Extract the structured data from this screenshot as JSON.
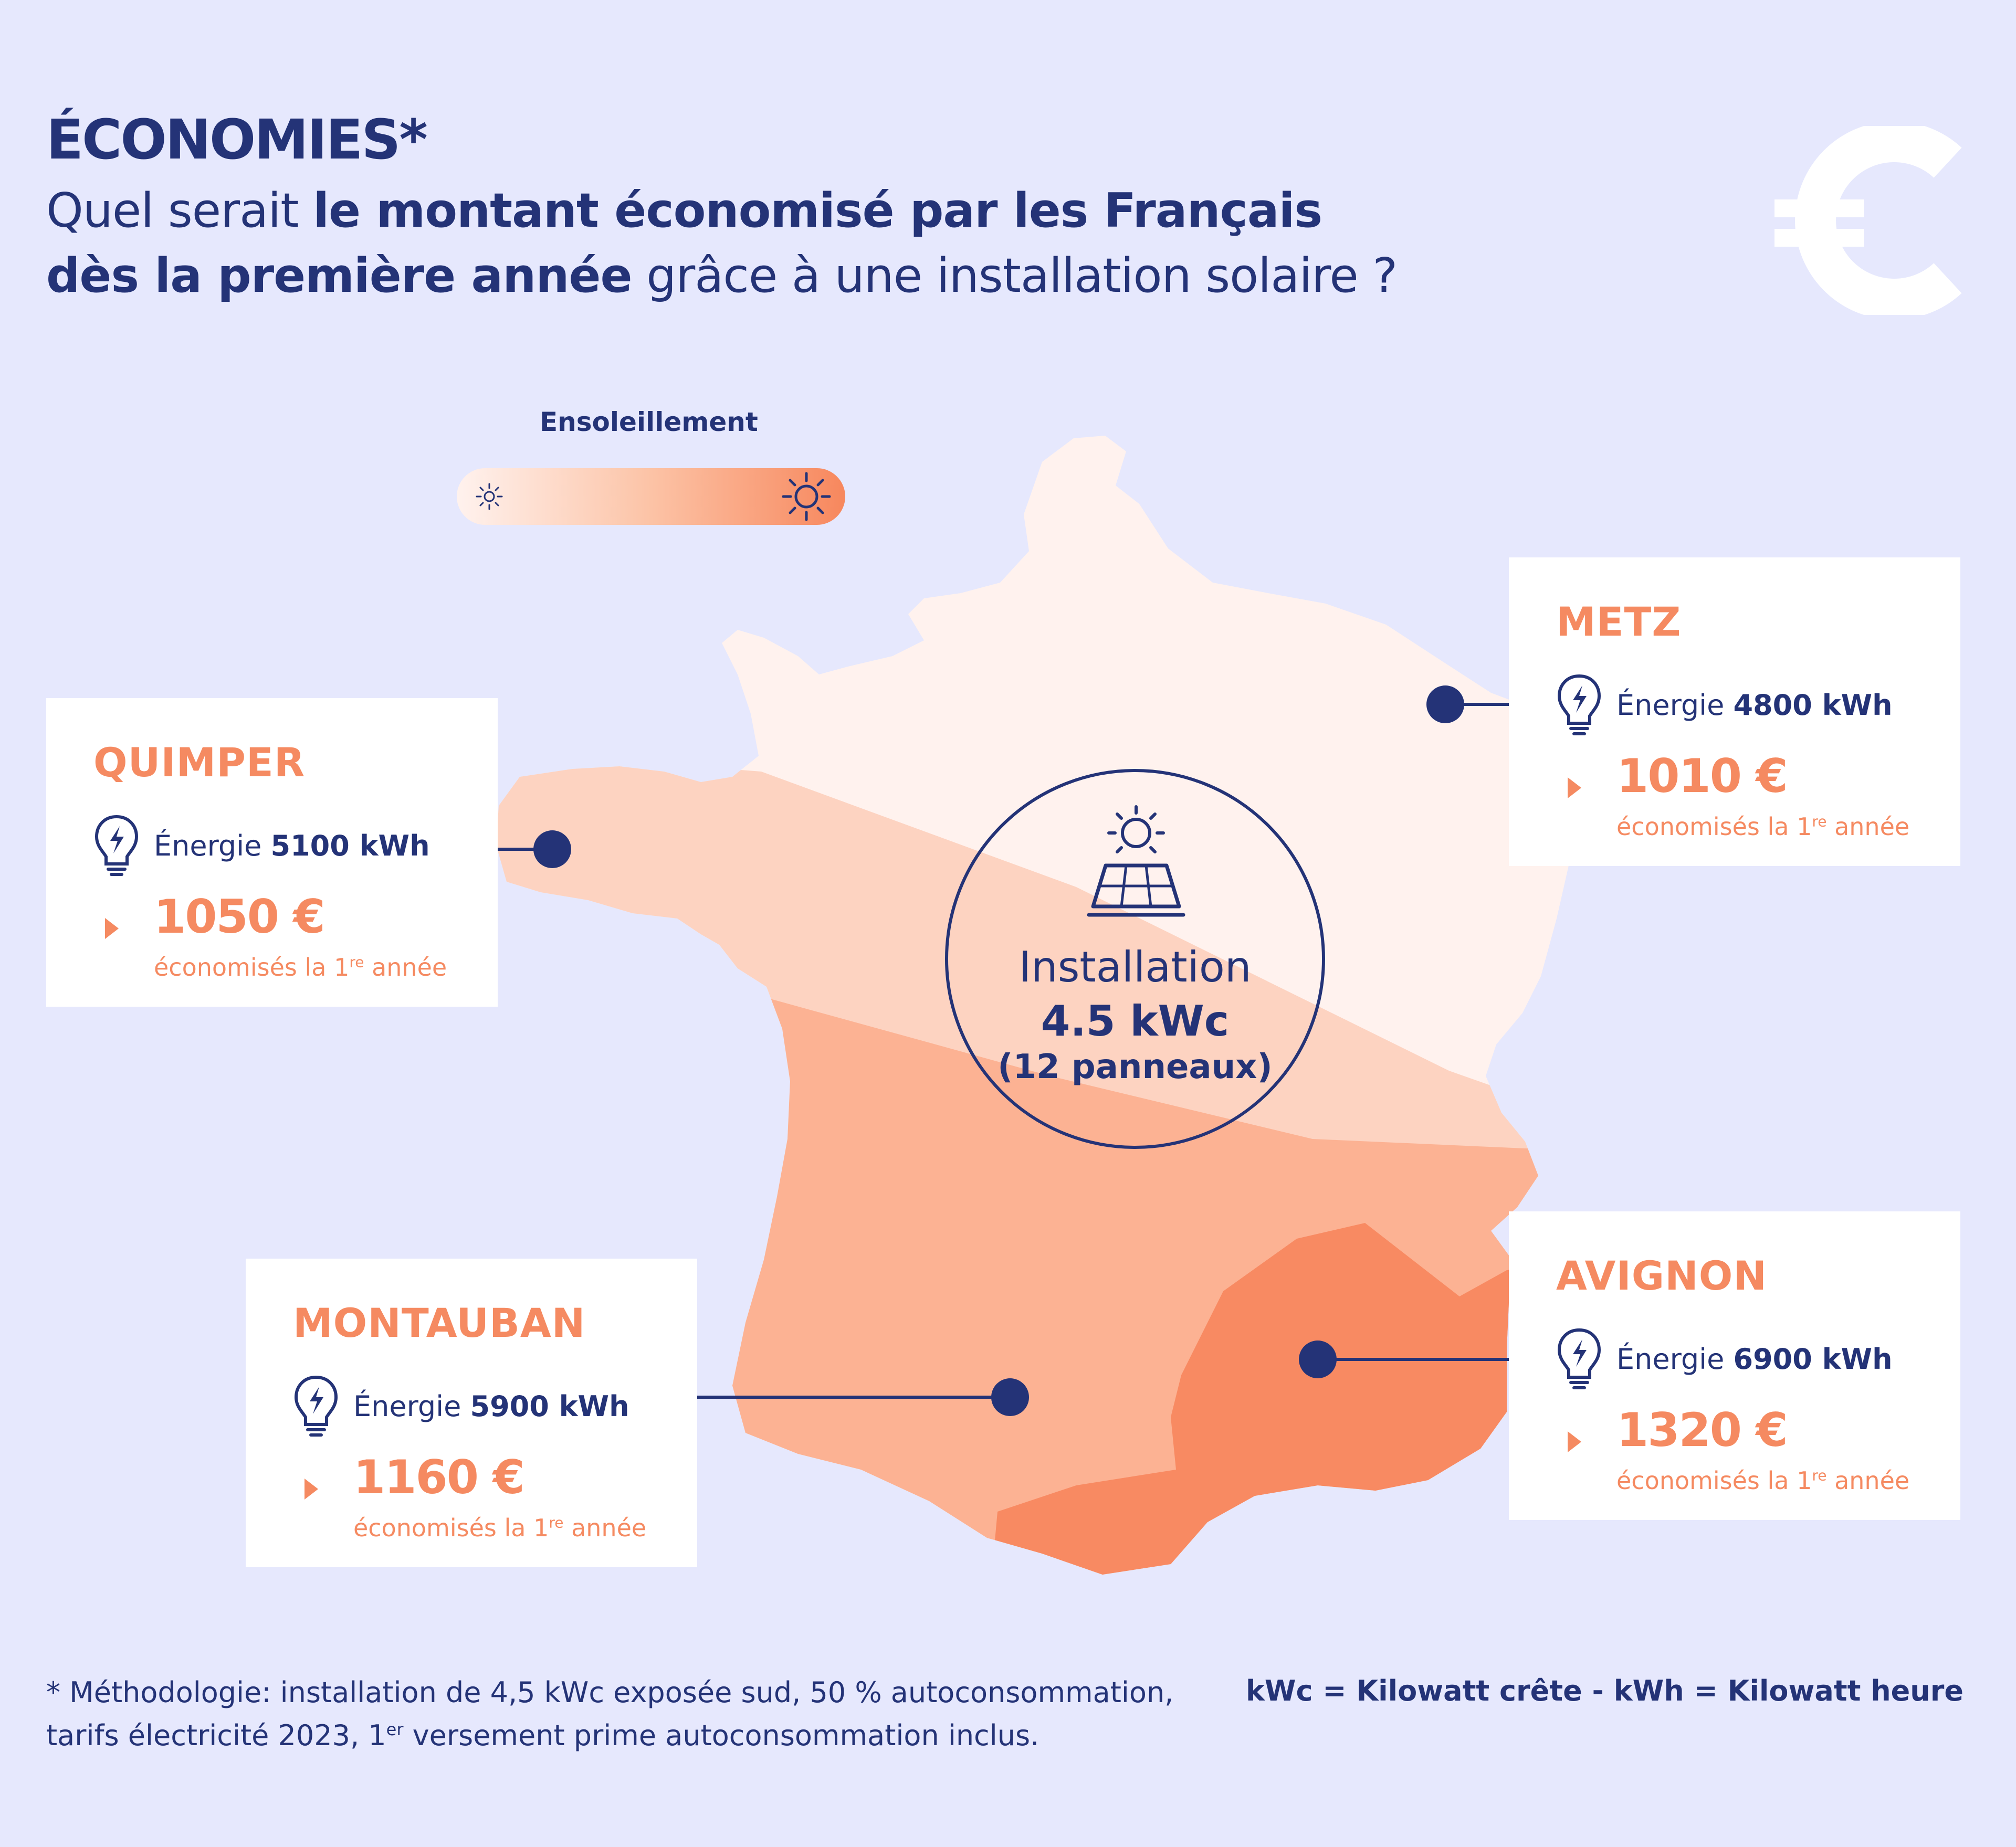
{
  "header": {
    "kicker": "ÉCONOMIES*",
    "line1_normal": "Quel serait ",
    "line1_bold": "le montant économisé par les Français",
    "line2_bold": "dès la première année",
    "line2_normal": " grâce à une installation solaire  ?"
  },
  "legend": {
    "title": "Ensoleillement"
  },
  "badge": {
    "line1": "Installation",
    "line2": "4.5 kWc",
    "line3": "(12 panneaux)"
  },
  "cities": [
    {
      "name": "QUIMPER",
      "energy_prefix": "Énergie ",
      "energy_value": "5100 kWh",
      "amount": "1050 €",
      "saved": "économisés la 1",
      "saved_sup": "re",
      "saved_suffix": " année"
    },
    {
      "name": "METZ",
      "energy_prefix": "Énergie ",
      "energy_value": "4800 kWh",
      "amount": "1010 €",
      "saved": "économisés la 1",
      "saved_sup": "re",
      "saved_suffix": " année"
    },
    {
      "name": "MONTAUBAN",
      "energy_prefix": "Énergie ",
      "energy_value": "5900 kWh",
      "amount": "1160 €",
      "saved": "économisés la 1",
      "saved_sup": "re",
      "saved_suffix": " année"
    },
    {
      "name": "AVIGNON",
      "energy_prefix": "Énergie ",
      "energy_value": "6900 kWh",
      "amount": "1320 €",
      "saved": "économisés la 1",
      "saved_sup": "re",
      "saved_suffix": " année"
    }
  ],
  "footer": {
    "footnote_1": "* Méthodologie: installation de 4,5 kWc exposée sud, 50 % autoconsommation,",
    "footnote_2a": "tarifs électricité 2023, 1",
    "footnote_2sup": "er",
    "footnote_2b": " versement prime autoconsommation inclus.",
    "units": "kWc = Kilowatt crête - kWh = Kilowatt heure"
  },
  "colors": {
    "background": "#e6e8fd",
    "navy": "#243377",
    "accent": "#f58a61",
    "zone_low": "#fff2ee",
    "zone_mid_low": "#fdd3c1",
    "zone_mid_high": "#fcb293",
    "zone_high": "#f88a62"
  },
  "icons": [
    "euro-icon",
    "sun-icon",
    "solar-panel-icon",
    "lightbulb-icon",
    "arrow-icon"
  ]
}
